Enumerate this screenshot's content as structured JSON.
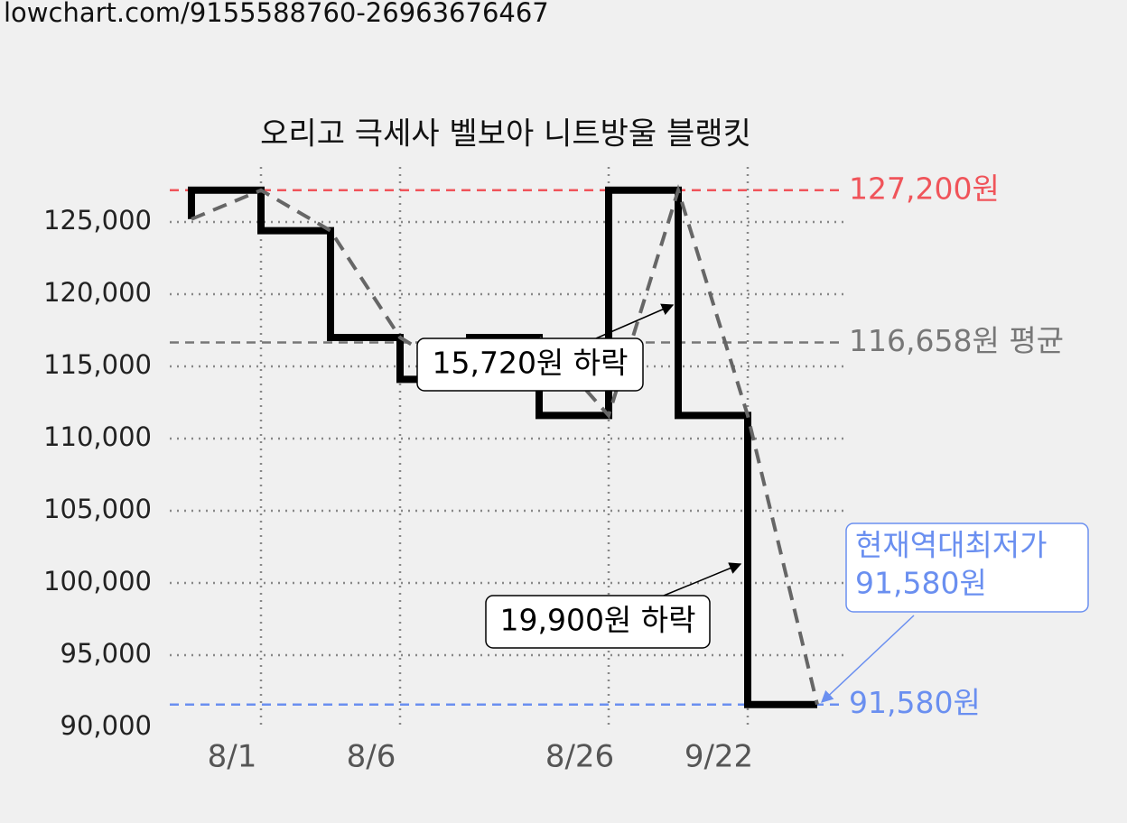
{
  "url": "lowchart.com/9155588760-26963676467",
  "chart_data": {
    "type": "step-line",
    "title": "오리고 극세사 벨보아 니트방울 블랭킷",
    "categories": [
      null,
      "8/1",
      null,
      "8/6",
      null,
      null,
      "8/26",
      null,
      "9/22",
      null
    ],
    "values": [
      125200,
      127200,
      124400,
      117000,
      114100,
      117000,
      111600,
      127200,
      111600,
      91580
    ],
    "color": "#000000",
    "dashed_color": "#666666",
    "ylim": [
      90000,
      129000
    ],
    "yticks": [
      {
        "value": 90000,
        "label": "90,000"
      },
      {
        "value": 95000,
        "label": "95,000"
      },
      {
        "value": 100000,
        "label": "100,000"
      },
      {
        "value": 105000,
        "label": "105,000"
      },
      {
        "value": 110000,
        "label": "110,000"
      },
      {
        "value": 115000,
        "label": "115,000"
      },
      {
        "value": 120000,
        "label": "120,000"
      },
      {
        "value": 125000,
        "label": "125,000"
      }
    ],
    "grid": true,
    "reference_lines": [
      {
        "value": 127200,
        "label": "127,200원",
        "color": "#f0545a"
      },
      {
        "value": 116658,
        "label": "116,658원 평균",
        "color": "#777777"
      },
      {
        "value": 91580,
        "label": "91,580원",
        "color": "#6a8ff0"
      }
    ],
    "annotations": [
      {
        "lines": [
          "15,720원 하락"
        ]
      },
      {
        "lines": [
          "19,900원 하락"
        ]
      },
      {
        "lines": [
          "현재역대최저가",
          "91,580원"
        ],
        "color": "#6a8ff0"
      }
    ]
  }
}
